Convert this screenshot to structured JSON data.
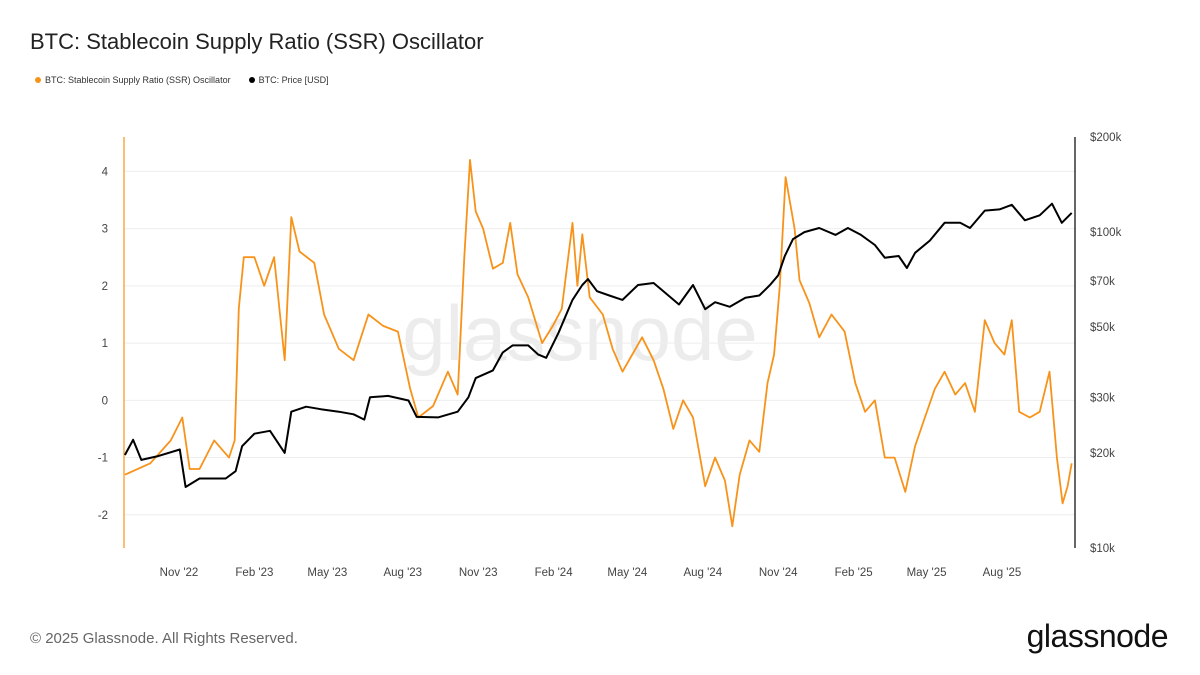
{
  "title": "BTC: Stablecoin Supply Ratio (SSR) Oscillator",
  "footer": "© 2025 Glassnode. All Rights Reserved.",
  "logo": "glassnode",
  "watermark": "glassnode",
  "colors": {
    "ssr": "#f7931a",
    "price": "#000000",
    "grid": "#eeeeee"
  },
  "chart_data": {
    "type": "line",
    "title": "BTC: Stablecoin Supply Ratio (SSR) Oscillator",
    "legend_position": "top-left",
    "grid": true,
    "x_ticks": [
      {
        "label": "Nov '22",
        "date": "2022-11-01"
      },
      {
        "label": "Feb '23",
        "date": "2023-02-01"
      },
      {
        "label": "May '23",
        "date": "2023-05-01"
      },
      {
        "label": "Aug '23",
        "date": "2023-08-01"
      },
      {
        "label": "Nov '23",
        "date": "2023-11-01"
      },
      {
        "label": "Feb '24",
        "date": "2024-02-01"
      },
      {
        "label": "May '24",
        "date": "2024-05-01"
      },
      {
        "label": "Aug '24",
        "date": "2024-08-01"
      },
      {
        "label": "Nov '24",
        "date": "2024-11-01"
      },
      {
        "label": "Feb '25",
        "date": "2025-02-01"
      },
      {
        "label": "May '25",
        "date": "2025-05-01"
      },
      {
        "label": "Aug '25",
        "date": "2025-08-01"
      }
    ],
    "xlim": [
      "2022-08-27",
      "2025-10-25"
    ],
    "y_left": {
      "ylim": [
        -2.58,
        4.6
      ],
      "ticks": [
        "4",
        "3",
        "2",
        "1",
        "0",
        "-1",
        "-2"
      ],
      "tick_values": [
        4,
        3,
        2,
        1,
        0,
        -1,
        -2
      ]
    },
    "y_right": {
      "scale": "log",
      "ylim": [
        10000,
        200000
      ],
      "ticks": [
        "$200k",
        "$100k",
        "$70k",
        "$50k",
        "$30k",
        "$20k",
        "$10k"
      ],
      "tick_values": [
        200000,
        100000,
        70000,
        50000,
        30000,
        20000,
        10000
      ]
    },
    "series": [
      {
        "name": "BTC: Stablecoin Supply Ratio (SSR) Oscillator",
        "axis": "left",
        "color": "#f7931a",
        "points": [
          [
            "2022-08-27",
            -1.3
          ],
          [
            "2022-09-27",
            -1.1
          ],
          [
            "2022-10-22",
            -0.7
          ],
          [
            "2022-11-05",
            -0.3
          ],
          [
            "2022-11-14",
            -1.2
          ],
          [
            "2022-11-26",
            -1.2
          ],
          [
            "2022-12-14",
            -0.7
          ],
          [
            "2023-01-01",
            -1.0
          ],
          [
            "2023-01-08",
            -0.7
          ],
          [
            "2023-01-13",
            1.6
          ],
          [
            "2023-01-19",
            2.5
          ],
          [
            "2023-02-01",
            2.5
          ],
          [
            "2023-02-13",
            2.0
          ],
          [
            "2023-02-25",
            2.5
          ],
          [
            "2023-03-10",
            0.7
          ],
          [
            "2023-03-18",
            3.2
          ],
          [
            "2023-03-28",
            2.6
          ],
          [
            "2023-04-15",
            2.4
          ],
          [
            "2023-04-27",
            1.5
          ],
          [
            "2023-05-15",
            0.9
          ],
          [
            "2023-06-02",
            0.7
          ],
          [
            "2023-06-20",
            1.5
          ],
          [
            "2023-07-08",
            1.3
          ],
          [
            "2023-07-26",
            1.2
          ],
          [
            "2023-08-10",
            0.2
          ],
          [
            "2023-08-20",
            -0.3
          ],
          [
            "2023-09-07",
            -0.1
          ],
          [
            "2023-09-25",
            0.5
          ],
          [
            "2023-10-07",
            0.1
          ],
          [
            "2023-10-15",
            2.5
          ],
          [
            "2023-10-22",
            4.2
          ],
          [
            "2023-10-29",
            3.3
          ],
          [
            "2023-11-07",
            3.0
          ],
          [
            "2023-11-19",
            2.3
          ],
          [
            "2023-12-01",
            2.4
          ],
          [
            "2023-12-10",
            3.1
          ],
          [
            "2023-12-19",
            2.2
          ],
          [
            "2024-01-01",
            1.8
          ],
          [
            "2024-01-18",
            1.0
          ],
          [
            "2024-01-31",
            1.3
          ],
          [
            "2024-02-11",
            1.6
          ],
          [
            "2024-02-24",
            3.1
          ],
          [
            "2024-03-01",
            2.0
          ],
          [
            "2024-03-07",
            2.9
          ],
          [
            "2024-03-16",
            1.8
          ],
          [
            "2024-04-01",
            1.5
          ],
          [
            "2024-04-13",
            0.9
          ],
          [
            "2024-04-25",
            0.5
          ],
          [
            "2024-05-07",
            0.8
          ],
          [
            "2024-05-19",
            1.1
          ],
          [
            "2024-06-02",
            0.7
          ],
          [
            "2024-06-14",
            0.2
          ],
          [
            "2024-06-26",
            -0.5
          ],
          [
            "2024-07-08",
            0.0
          ],
          [
            "2024-07-20",
            -0.3
          ],
          [
            "2024-08-04",
            -1.5
          ],
          [
            "2024-08-16",
            -1.0
          ],
          [
            "2024-08-28",
            -1.4
          ],
          [
            "2024-09-06",
            -2.2
          ],
          [
            "2024-09-15",
            -1.3
          ],
          [
            "2024-09-27",
            -0.7
          ],
          [
            "2024-10-09",
            -0.9
          ],
          [
            "2024-10-19",
            0.3
          ],
          [
            "2024-10-27",
            0.8
          ],
          [
            "2024-11-03",
            2.0
          ],
          [
            "2024-11-10",
            3.9
          ],
          [
            "2024-11-21",
            3.0
          ],
          [
            "2024-11-27",
            2.1
          ],
          [
            "2024-12-09",
            1.7
          ],
          [
            "2024-12-21",
            1.1
          ],
          [
            "2025-01-05",
            1.5
          ],
          [
            "2025-01-21",
            1.2
          ],
          [
            "2025-02-03",
            0.3
          ],
          [
            "2025-02-15",
            -0.2
          ],
          [
            "2025-02-27",
            0.0
          ],
          [
            "2025-03-11",
            -1.0
          ],
          [
            "2025-03-23",
            -1.0
          ],
          [
            "2025-04-05",
            -1.6
          ],
          [
            "2025-04-17",
            -0.8
          ],
          [
            "2025-04-29",
            -0.3
          ],
          [
            "2025-05-11",
            0.2
          ],
          [
            "2025-05-23",
            0.5
          ],
          [
            "2025-06-05",
            0.1
          ],
          [
            "2025-06-17",
            0.3
          ],
          [
            "2025-06-29",
            -0.2
          ],
          [
            "2025-07-11",
            1.4
          ],
          [
            "2025-07-23",
            1.0
          ],
          [
            "2025-08-04",
            0.8
          ],
          [
            "2025-08-13",
            1.4
          ],
          [
            "2025-08-22",
            -0.2
          ],
          [
            "2025-09-04",
            -0.3
          ],
          [
            "2025-09-16",
            -0.2
          ],
          [
            "2025-09-28",
            0.5
          ],
          [
            "2025-10-07",
            -1.0
          ],
          [
            "2025-10-14",
            -1.8
          ],
          [
            "2025-10-20",
            -1.5
          ],
          [
            "2025-10-25",
            -1.1
          ]
        ]
      },
      {
        "name": "BTC: Price [USD]",
        "axis": "right",
        "color": "#000000",
        "points": [
          [
            "2022-08-27",
            19700
          ],
          [
            "2022-09-06",
            22000
          ],
          [
            "2022-09-16",
            19000
          ],
          [
            "2022-10-05",
            19500
          ],
          [
            "2022-11-02",
            20500
          ],
          [
            "2022-11-09",
            15600
          ],
          [
            "2022-11-26",
            16600
          ],
          [
            "2022-12-28",
            16600
          ],
          [
            "2023-01-09",
            17500
          ],
          [
            "2023-01-17",
            21000
          ],
          [
            "2023-02-01",
            23000
          ],
          [
            "2023-02-20",
            23500
          ],
          [
            "2023-03-10",
            20000
          ],
          [
            "2023-03-18",
            27000
          ],
          [
            "2023-04-05",
            28000
          ],
          [
            "2023-04-23",
            27500
          ],
          [
            "2023-05-15",
            27000
          ],
          [
            "2023-06-02",
            26500
          ],
          [
            "2023-06-15",
            25500
          ],
          [
            "2023-06-22",
            30000
          ],
          [
            "2023-07-14",
            30300
          ],
          [
            "2023-08-08",
            29300
          ],
          [
            "2023-08-18",
            26000
          ],
          [
            "2023-09-13",
            25900
          ],
          [
            "2023-10-07",
            27000
          ],
          [
            "2023-10-20",
            30000
          ],
          [
            "2023-10-29",
            34500
          ],
          [
            "2023-11-19",
            36500
          ],
          [
            "2023-12-01",
            41600
          ],
          [
            "2023-12-13",
            43800
          ],
          [
            "2024-01-01",
            43800
          ],
          [
            "2024-01-13",
            41000
          ],
          [
            "2024-01-23",
            40000
          ],
          [
            "2024-02-07",
            48000
          ],
          [
            "2024-02-24",
            61000
          ],
          [
            "2024-03-07",
            68000
          ],
          [
            "2024-03-14",
            71000
          ],
          [
            "2024-03-25",
            65000
          ],
          [
            "2024-04-09",
            63000
          ],
          [
            "2024-04-25",
            61000
          ],
          [
            "2024-05-14",
            68000
          ],
          [
            "2024-06-02",
            69000
          ],
          [
            "2024-06-20",
            63000
          ],
          [
            "2024-07-03",
            59000
          ],
          [
            "2024-07-20",
            68000
          ],
          [
            "2024-08-04",
            57000
          ],
          [
            "2024-08-16",
            60000
          ],
          [
            "2024-09-03",
            58000
          ],
          [
            "2024-09-22",
            62000
          ],
          [
            "2024-10-09",
            63000
          ],
          [
            "2024-10-22",
            68000
          ],
          [
            "2024-11-01",
            73000
          ],
          [
            "2024-11-09",
            84000
          ],
          [
            "2024-11-19",
            95000
          ],
          [
            "2024-12-03",
            100000
          ],
          [
            "2024-12-21",
            103000
          ],
          [
            "2025-01-10",
            98000
          ],
          [
            "2025-01-25",
            103000
          ],
          [
            "2025-02-10",
            98000
          ],
          [
            "2025-02-27",
            91000
          ],
          [
            "2025-03-11",
            83000
          ],
          [
            "2025-03-28",
            84000
          ],
          [
            "2025-04-07",
            77000
          ],
          [
            "2025-04-17",
            86000
          ],
          [
            "2025-05-05",
            94000
          ],
          [
            "2025-05-23",
            107000
          ],
          [
            "2025-06-11",
            107000
          ],
          [
            "2025-06-23",
            103000
          ],
          [
            "2025-07-11",
            117000
          ],
          [
            "2025-07-29",
            118000
          ],
          [
            "2025-08-13",
            122000
          ],
          [
            "2025-08-29",
            109000
          ],
          [
            "2025-09-16",
            113000
          ],
          [
            "2025-10-01",
            123000
          ],
          [
            "2025-10-13",
            107000
          ],
          [
            "2025-10-25",
            115000
          ]
        ]
      }
    ]
  }
}
